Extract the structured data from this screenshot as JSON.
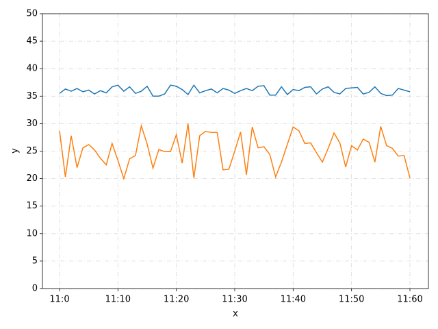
{
  "chart_data": {
    "type": "line",
    "xlabel": "x",
    "ylabel": "y",
    "categories": [
      "11:0",
      null,
      null,
      null,
      null,
      null,
      null,
      null,
      null,
      null,
      "11:10",
      null,
      null,
      null,
      null,
      null,
      null,
      null,
      null,
      null,
      "11:20",
      null,
      null,
      null,
      null,
      null,
      null,
      null,
      null,
      null,
      "11:30",
      null,
      null,
      null,
      null,
      null,
      null,
      null,
      null,
      null,
      "11:40",
      null,
      null,
      null,
      null,
      null,
      null,
      null,
      null,
      null,
      "11:50",
      null,
      null,
      null,
      null,
      null,
      null,
      null,
      null,
      null,
      "11:60"
    ],
    "series": [
      {
        "color": "#1f77b4",
        "values": [
          35.5,
          36.3,
          35.9,
          36.4,
          35.8,
          36.1,
          35.4,
          36.0,
          35.6,
          36.7,
          37.0,
          35.9,
          36.7,
          35.5,
          35.9,
          36.8,
          35.0,
          35.0,
          35.4,
          37.0,
          36.8,
          36.2,
          35.3,
          37.0,
          35.6,
          36.0,
          36.3,
          35.6,
          36.4,
          36.1,
          35.5,
          36.0,
          36.4,
          36.0,
          36.8,
          36.9,
          35.2,
          35.2,
          36.7,
          35.3,
          36.2,
          36.0,
          36.6,
          36.7,
          35.4,
          36.3,
          36.7,
          35.7,
          35.4,
          36.4,
          36.5,
          36.6,
          35.4,
          35.7,
          36.7,
          35.5,
          35.1,
          35.2,
          36.4,
          36.1,
          35.8
        ]
      },
      {
        "color": "#ff7f0e",
        "values": [
          28.7,
          20.3,
          27.8,
          22.0,
          25.6,
          26.2,
          25.2,
          23.7,
          22.5,
          26.4,
          23.3,
          20.0,
          23.6,
          24.2,
          29.6,
          26.3,
          21.9,
          25.3,
          24.9,
          24.9,
          28.0,
          22.8,
          30.0,
          20.1,
          27.8,
          28.6,
          28.4,
          28.4,
          21.6,
          21.7,
          25.0,
          28.5,
          20.7,
          29.4,
          25.6,
          25.8,
          24.4,
          20.3,
          23.0,
          26.2,
          29.4,
          28.7,
          26.4,
          26.5,
          24.7,
          23.0,
          25.5,
          28.3,
          26.5,
          22.1,
          26.0,
          25.2,
          27.2,
          26.6,
          23.0,
          29.5,
          26.0,
          25.5,
          24.1,
          24.2,
          20.1
        ]
      }
    ],
    "ylim": [
      0,
      50
    ],
    "yticks": [
      0,
      5,
      10,
      15,
      20,
      25,
      30,
      35,
      40,
      45,
      50
    ],
    "grid": true
  }
}
